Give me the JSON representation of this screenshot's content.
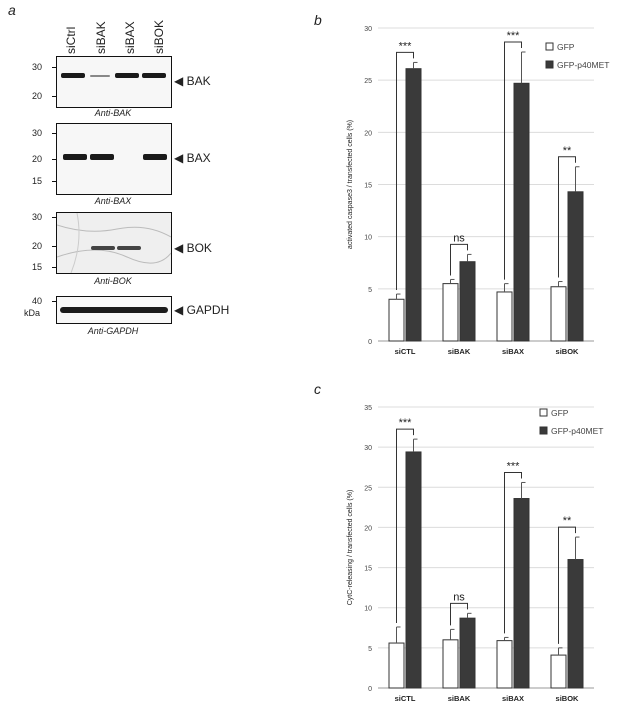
{
  "panels": {
    "a": "a",
    "b": "b",
    "c": "c"
  },
  "blot": {
    "lanes": [
      "siCtrl",
      "siBAK",
      "siBAX",
      "siBOK"
    ],
    "rows": [
      {
        "target": "BAK",
        "antibody": "Anti-BAK",
        "markers": [
          "30",
          "20"
        ]
      },
      {
        "target": "BAX",
        "antibody": "Anti-BAX",
        "markers": [
          "30",
          "20",
          "15"
        ]
      },
      {
        "target": "BOK",
        "antibody": "Anti-BOK",
        "markers": [
          "30",
          "20",
          "15"
        ]
      },
      {
        "target": "GAPDH",
        "antibody": "Anti-GAPDH",
        "markers": [
          "40"
        ]
      }
    ],
    "unit": "kDa",
    "arrow": "◀"
  },
  "chart_data": [
    {
      "type": "bar",
      "panel": "b",
      "title": "",
      "ylabel": "activated caspase3 / transfected cells (%)",
      "xlabel": "",
      "ylim": [
        0,
        30
      ],
      "yticks": [
        "0",
        "5",
        "10",
        "15",
        "20",
        "25",
        "30"
      ],
      "categories": [
        "siCTL",
        "siBAK",
        "siBAX",
        "siBOK"
      ],
      "series": [
        {
          "name": "GFP",
          "color": "#ffffff",
          "values": [
            4.0,
            5.5,
            4.7,
            5.2
          ],
          "errors": [
            0.5,
            0.4,
            0.8,
            0.5
          ]
        },
        {
          "name": "GFP-p40MET",
          "color": "#3a3a3a",
          "values": [
            26.1,
            7.6,
            24.7,
            14.3
          ],
          "errors": [
            0.6,
            0.7,
            3.0,
            2.4
          ]
        }
      ],
      "significance": [
        "***",
        "ns",
        "***",
        "**"
      ],
      "legend": "top-right",
      "grid": true
    },
    {
      "type": "bar",
      "panel": "c",
      "title": "",
      "ylabel": "CytC-releasing / transfected cells (%)",
      "xlabel": "",
      "ylim": [
        0,
        35
      ],
      "yticks": [
        "0",
        "5",
        "10",
        "15",
        "20",
        "25",
        "30",
        "35"
      ],
      "categories": [
        "siCTL",
        "siBAK",
        "siBAX",
        "siBOK"
      ],
      "series": [
        {
          "name": "GFP",
          "color": "#ffffff",
          "values": [
            5.6,
            6.0,
            5.9,
            4.1
          ],
          "errors": [
            2.0,
            1.3,
            0.4,
            0.9
          ]
        },
        {
          "name": "GFP-p40MET",
          "color": "#3a3a3a",
          "values": [
            29.4,
            8.7,
            23.6,
            16.0
          ],
          "errors": [
            1.6,
            0.6,
            2.0,
            2.8
          ]
        }
      ],
      "significance": [
        "***",
        "ns",
        "***",
        "**"
      ],
      "legend": "top-right",
      "grid": true
    }
  ]
}
